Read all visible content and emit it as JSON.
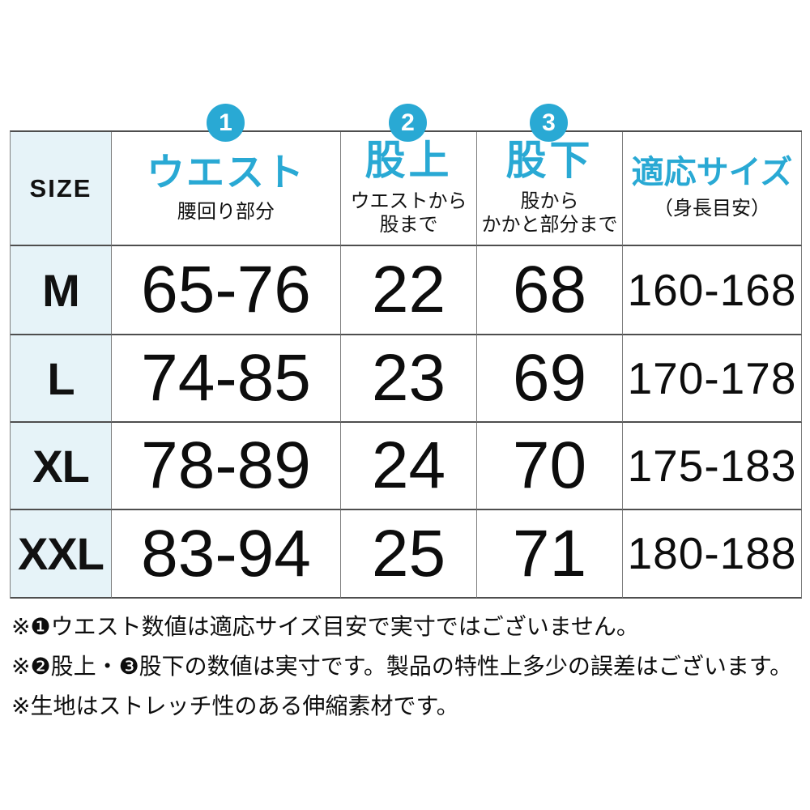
{
  "colors": {
    "accent_cyan": "#29a9d4",
    "size_column_bg": "#e6f3f8",
    "text_black": "#111111"
  },
  "badges": {
    "waist": "1",
    "rise": "2",
    "inseam": "3"
  },
  "table": {
    "size_header": "SIZE",
    "columns": [
      {
        "badge": "1",
        "title": "ウエスト",
        "subtitle": "腰回り部分"
      },
      {
        "badge": "2",
        "title": "股上",
        "subtitle": "ウエストから\n股まで"
      },
      {
        "badge": "3",
        "title": "股下",
        "subtitle": "股から\nかかと部分まで"
      },
      {
        "badge": null,
        "title": "適応サイズ",
        "subtitle": "（身長目安）"
      }
    ],
    "rows": [
      {
        "size": "M",
        "waist": "65-76",
        "rise": "22",
        "inseam": "68",
        "height": "160-168"
      },
      {
        "size": "L",
        "waist": "74-85",
        "rise": "23",
        "inseam": "69",
        "height": "170-178"
      },
      {
        "size": "XL",
        "waist": "78-89",
        "rise": "24",
        "inseam": "70",
        "height": "175-183"
      },
      {
        "size": "XXL",
        "waist": "83-94",
        "rise": "25",
        "inseam": "71",
        "height": "180-188"
      }
    ]
  },
  "notes": [
    "※❶ウエスト数値は適応サイズ目安で実寸ではございません。",
    "※❷股上・❸股下の数値は実寸です。製品の特性上多少の誤差はございます。",
    "※生地はストレッチ性のある伸縮素材です。"
  ],
  "chart_data": {
    "type": "table",
    "title": "サイズ表（適応サイズ目安）",
    "columns": [
      "SIZE",
      "ウエスト（腰回り部分）",
      "股上（ウエストから股まで）",
      "股下（股からかかと部分まで）",
      "適応サイズ（身長目安）"
    ],
    "rows": [
      [
        "M",
        "65-76",
        22,
        68,
        "160-168"
      ],
      [
        "L",
        "74-85",
        23,
        69,
        "170-178"
      ],
      [
        "XL",
        "78-89",
        24,
        70,
        "175-183"
      ],
      [
        "XXL",
        "83-94",
        25,
        71,
        "180-188"
      ]
    ],
    "footnotes": [
      "※❶ウエスト数値は適応サイズ目安で実寸ではございません。",
      "※❷股上・❸股下の数値は実寸です。製品の特性上多少の誤差はございます。",
      "※生地はストレッチ性のある伸縮素材です。"
    ]
  }
}
